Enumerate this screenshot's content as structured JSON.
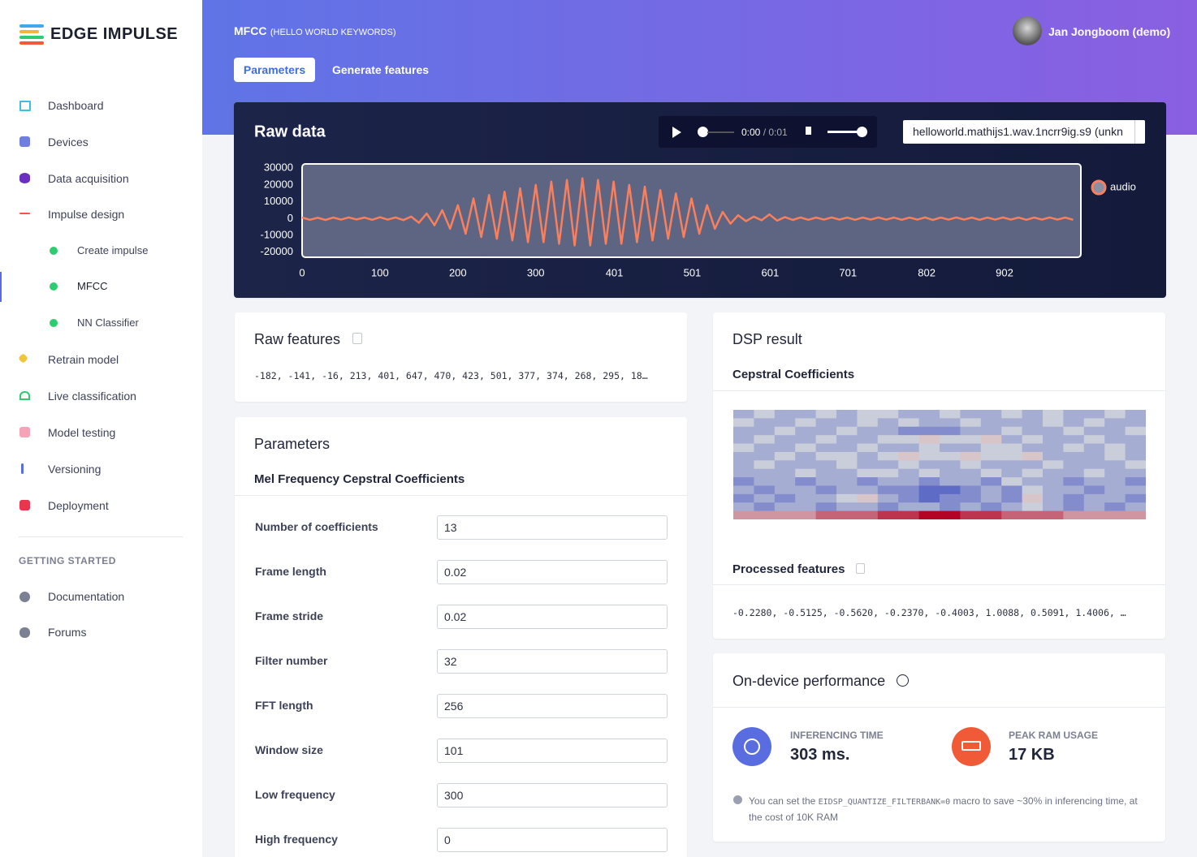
{
  "sidebar": {
    "brand": "EDGE IMPULSE",
    "items": [
      "Dashboard",
      "Devices",
      "Data acquisition",
      "Impulse design"
    ],
    "sub_items": [
      "Create impulse",
      "MFCC",
      "NN Classifier"
    ],
    "more_items": [
      "Retrain model",
      "Live classification",
      "Model testing",
      "Versioning",
      "Deployment"
    ],
    "section": "GETTING STARTED",
    "help_items": [
      "Documentation",
      "Forums"
    ]
  },
  "header": {
    "title": "MFCC",
    "subtitle": "(HELLO WORLD KEYWORDS)",
    "user": "Jan Jongboom (demo)",
    "tabs": [
      "Parameters",
      "Generate features"
    ]
  },
  "player": {
    "time": "0:00",
    "duration": "/ 0:01",
    "sample": "helloworld.mathijs1.wav.1ncrr9ig.s9 (unkn"
  },
  "chart_data": [
    {
      "type": "line",
      "title": "Raw data",
      "x": [
        0,
        10,
        20,
        30,
        40,
        50,
        60,
        70,
        80,
        90,
        100,
        110,
        120,
        130,
        140,
        150,
        160,
        170,
        180,
        190,
        200,
        210,
        220,
        230,
        240,
        250,
        260,
        270,
        280,
        290,
        300,
        310,
        320,
        330,
        340,
        350,
        360,
        370,
        380,
        390,
        400,
        410,
        420,
        430,
        440,
        450,
        460,
        470,
        480,
        490,
        500,
        510,
        520,
        530,
        540,
        550,
        560,
        570,
        580,
        590,
        600,
        610,
        620,
        630,
        640,
        650,
        660,
        670,
        680,
        690,
        700,
        710,
        720,
        730,
        740,
        750,
        760,
        770,
        780,
        790,
        800,
        810,
        820,
        830,
        840,
        850,
        860,
        870,
        880,
        890,
        900,
        910,
        920,
        930,
        940,
        950,
        960,
        970,
        980,
        990
      ],
      "series": [
        {
          "name": "audio",
          "color": "#fa7f5c",
          "values": [
            600,
            -700,
            500,
            -800,
            600,
            -600,
            700,
            -500,
            600,
            -700,
            800,
            -600,
            700,
            -900,
            1200,
            -2500,
            3000,
            -4000,
            5000,
            -6000,
            8000,
            -9000,
            12000,
            -11000,
            14000,
            -12000,
            16000,
            -13000,
            18000,
            -14000,
            20000,
            -14000,
            22000,
            -15000,
            23000,
            -16000,
            24000,
            -16000,
            23000,
            -15000,
            22000,
            -15000,
            20000,
            -14000,
            19000,
            -13000,
            17000,
            -12000,
            15000,
            -11000,
            12000,
            -9000,
            8000,
            -6000,
            4000,
            -3000,
            2000,
            -1500,
            1200,
            -1000,
            2500,
            -1200,
            900,
            -800,
            700,
            -700,
            600,
            -600,
            700,
            -600,
            600,
            -700,
            600,
            -600,
            700,
            -600,
            600,
            -700,
            600,
            -600,
            700,
            -800,
            600,
            -600,
            700,
            -600,
            600,
            -700,
            600,
            -600,
            700,
            -600,
            600,
            -700,
            600,
            -600,
            700,
            -600,
            600,
            -700
          ]
        }
      ],
      "xlim": [
        0,
        1000
      ],
      "ylim": [
        -23000,
        32500
      ],
      "xticks": [
        0,
        100,
        200,
        300,
        401,
        501,
        601,
        701,
        802,
        902
      ],
      "yticks": [
        30000,
        20000,
        10000,
        0,
        -10000,
        -20000
      ],
      "grid": false,
      "legend": "right"
    },
    {
      "type": "heatmap",
      "title": "Cepstral Coefficients",
      "zlim": [
        0,
        9
      ],
      "colormap": [
        "#3b4cc0",
        "#dcdddd",
        "#b40426"
      ],
      "values": [
        [
          3,
          4,
          3,
          3,
          4,
          3,
          4,
          4,
          3,
          3,
          4,
          3,
          3,
          4,
          3,
          4,
          3,
          3,
          4,
          3
        ],
        [
          4,
          3,
          3,
          4,
          3,
          3,
          4,
          3,
          4,
          3,
          3,
          4,
          3,
          3,
          3,
          4,
          3,
          4,
          3,
          3
        ],
        [
          3,
          3,
          4,
          3,
          3,
          4,
          3,
          3,
          2,
          2,
          2,
          3,
          3,
          4,
          3,
          3,
          4,
          3,
          3,
          4
        ],
        [
          3,
          4,
          3,
          3,
          4,
          3,
          3,
          4,
          4,
          5,
          4,
          4,
          5,
          3,
          4,
          3,
          3,
          4,
          3,
          3
        ],
        [
          4,
          3,
          3,
          4,
          3,
          3,
          4,
          3,
          3,
          4,
          3,
          3,
          4,
          4,
          3,
          3,
          4,
          3,
          4,
          3
        ],
        [
          3,
          3,
          4,
          3,
          4,
          4,
          3,
          4,
          5,
          4,
          4,
          5,
          4,
          4,
          5,
          3,
          3,
          3,
          4,
          3
        ],
        [
          3,
          4,
          3,
          3,
          3,
          4,
          3,
          3,
          4,
          3,
          3,
          4,
          3,
          3,
          3,
          4,
          3,
          3,
          3,
          4
        ],
        [
          3,
          3,
          3,
          4,
          3,
          3,
          4,
          4,
          3,
          4,
          3,
          3,
          4,
          3,
          4,
          3,
          3,
          4,
          3,
          3
        ],
        [
          2,
          3,
          3,
          2,
          3,
          3,
          2,
          3,
          3,
          2,
          3,
          3,
          2,
          4,
          3,
          3,
          2,
          3,
          3,
          2
        ],
        [
          3,
          2,
          3,
          3,
          2,
          3,
          3,
          2,
          2,
          1,
          1,
          2,
          3,
          2,
          4,
          3,
          3,
          2,
          3,
          3
        ],
        [
          2,
          3,
          2,
          3,
          3,
          4,
          5,
          3,
          2,
          1,
          2,
          2,
          3,
          2,
          5,
          3,
          2,
          3,
          3,
          2
        ],
        [
          3,
          2,
          3,
          3,
          2,
          3,
          3,
          2,
          3,
          3,
          2,
          3,
          2,
          3,
          4,
          3,
          2,
          3,
          2,
          3
        ],
        [
          6,
          6,
          6,
          6,
          7,
          7,
          7,
          8,
          8,
          9,
          9,
          8,
          8,
          7,
          7,
          7,
          6,
          6,
          6,
          6
        ]
      ]
    }
  ],
  "raw_features": {
    "title": "Raw features",
    "text": "-182, -141, -16, 213, 401, 647, 470, 423, 501, 377, 374, 268, 295, 18…"
  },
  "parameters": {
    "title": "Parameters",
    "subtitle": "Mel Frequency Cepstral Coefficients",
    "fields": [
      {
        "label": "Number of coefficients",
        "value": 13
      },
      {
        "label": "Frame length",
        "value": 0.02
      },
      {
        "label": "Frame stride",
        "value": 0.02
      },
      {
        "label": "Filter number",
        "value": 32
      },
      {
        "label": "FFT length",
        "value": 256
      },
      {
        "label": "Window size",
        "value": 101
      },
      {
        "label": "Low frequency",
        "value": 300
      },
      {
        "label": "High frequency",
        "value": 0
      }
    ]
  },
  "dsp_result": {
    "title": "DSP result",
    "processed_title": "Processed features",
    "processed": "-0.2280, -0.5125, -0.5620, -0.2370, -0.4003, 1.0088, 0.5091, 1.4006, …"
  },
  "performance": {
    "title": "On-device performance",
    "metrics": [
      {
        "label": "INFERENCING TIME",
        "value": "303 ms."
      },
      {
        "label": "PEAK RAM USAGE",
        "value": "17 KB"
      }
    ],
    "note_before": "You can set the",
    "note_code": "EIDSP_QUANTIZE_FILTERBANK=0",
    "note_after": "macro to save ~30% in inferencing time, at the cost of 10K RAM"
  }
}
